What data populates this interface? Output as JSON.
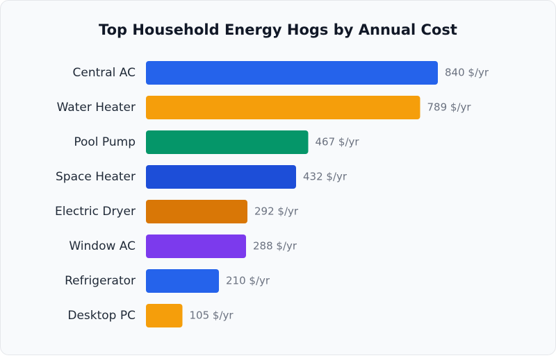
{
  "chart_data": {
    "type": "bar",
    "orientation": "horizontal",
    "title": "Top Household Energy Hogs by Annual Cost",
    "categories": [
      "Central AC",
      "Water Heater",
      "Pool Pump",
      "Space Heater",
      "Electric Dryer",
      "Window AC",
      "Refrigerator",
      "Desktop PC"
    ],
    "values": [
      840,
      789,
      467,
      432,
      292,
      288,
      210,
      105
    ],
    "value_labels": [
      "840 $/yr",
      "789 $/yr",
      "467 $/yr",
      "432 $/yr",
      "292 $/yr",
      "288 $/yr",
      "210 $/yr",
      "105 $/yr"
    ],
    "colors": [
      "#2563eb",
      "#f59e0b",
      "#059669",
      "#1d4ed8",
      "#d97706",
      "#7c3aed",
      "#2563eb",
      "#f59e0b"
    ]
  }
}
